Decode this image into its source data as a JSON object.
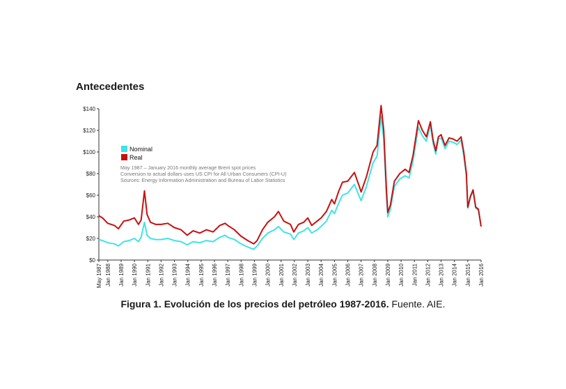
{
  "heading": "Antecedentes",
  "caption": {
    "bold": "Figura 1. Evolución de los precios del petróleo 1987-2016.",
    "rest": " Fuente. AIE."
  },
  "colors": {
    "nominal": "#3fe3e6",
    "real": "#c80f0f",
    "axis": "#333333"
  },
  "chart_data": {
    "type": "line",
    "legend_position": "upper-left",
    "grid": false,
    "ylim": [
      0,
      140
    ],
    "yticks": [
      "$0",
      "$20",
      "$40",
      "$60",
      "$80",
      "$100",
      "$120",
      "$140"
    ],
    "xlim": [
      1987.33,
      2016.0
    ],
    "xticks": [
      "May 1987",
      "Jan 1988",
      "Jan 1989",
      "Jan 1990",
      "Jan 1991",
      "Jan 1992",
      "Jan 1993",
      "Jan 1994",
      "Jan 1995",
      "Jan 1996",
      "Jan 1997",
      "Jan 1998",
      "Jan 1999",
      "Jan 2000",
      "Jan 2001",
      "Jan 2002",
      "Jan 2003",
      "Jan 2004",
      "Jan 2005",
      "Jan 2006",
      "Jan 2007",
      "Jan 2008",
      "Jan 2009",
      "Jan 2010",
      "Jan 2011",
      "Jan 2012",
      "Jan 2013",
      "Jan 2014",
      "Jan 2015",
      "Jan 2016"
    ],
    "notes": [
      "May 1987 – January 2016 monthly average Brent spot prices",
      "Conversion to actual dollars uses US CPI for All Urban Consumers (CPI-U)",
      "Sources: Energy Information Administration and Bureau of Labor Statistics"
    ],
    "series": [
      {
        "name": "Nominal",
        "x": [
          1987.33,
          1987.6,
          1988.0,
          1988.5,
          1988.8,
          1989.2,
          1989.6,
          1990.0,
          1990.3,
          1990.5,
          1990.75,
          1990.95,
          1991.2,
          1991.6,
          1992.0,
          1992.5,
          1993.0,
          1993.5,
          1993.95,
          1994.4,
          1994.9,
          1995.4,
          1995.9,
          1996.4,
          1996.8,
          1997.0,
          1997.5,
          1998.0,
          1998.5,
          1998.95,
          1999.2,
          1999.6,
          2000.0,
          2000.5,
          2000.8,
          2001.2,
          2001.7,
          2001.95,
          2002.3,
          2002.7,
          2003.0,
          2003.3,
          2003.7,
          2004.0,
          2004.4,
          2004.8,
          2005.0,
          2005.3,
          2005.6,
          2006.0,
          2006.5,
          2006.9,
          2007.0,
          2007.4,
          2007.9,
          2008.2,
          2008.5,
          2008.7,
          2008.9,
          2009.0,
          2009.2,
          2009.5,
          2009.9,
          2010.3,
          2010.6,
          2010.9,
          2011.3,
          2011.6,
          2011.9,
          2012.2,
          2012.4,
          2012.6,
          2012.8,
          2013.0,
          2013.3,
          2013.6,
          2013.9,
          2014.2,
          2014.5,
          2014.7,
          2014.9,
          2015.0,
          2015.2,
          2015.4,
          2015.6,
          2015.8,
          2016.0
        ],
        "values": [
          19,
          18,
          16,
          15,
          13,
          17,
          18,
          20,
          17,
          21,
          35,
          23,
          20,
          19,
          19,
          20,
          18,
          17,
          14,
          17,
          16,
          18,
          17,
          21,
          23,
          21,
          19,
          15,
          12,
          10,
          13,
          20,
          25,
          28,
          31,
          26,
          24,
          19,
          25,
          27,
          30,
          25,
          28,
          31,
          36,
          46,
          43,
          52,
          60,
          62,
          70,
          58,
          55,
          68,
          90,
          96,
          133,
          112,
          60,
          40,
          47,
          68,
          75,
          78,
          76,
          92,
          123,
          115,
          110,
          125,
          108,
          98,
          112,
          113,
          103,
          110,
          109,
          107,
          111,
          97,
          78,
          48,
          58,
          64,
          48,
          46,
          31
        ]
      },
      {
        "name": "Real",
        "x": [
          1987.33,
          1987.6,
          1988.0,
          1988.5,
          1988.8,
          1989.2,
          1989.6,
          1990.0,
          1990.3,
          1990.5,
          1990.75,
          1990.95,
          1991.2,
          1991.6,
          1992.0,
          1992.5,
          1993.0,
          1993.5,
          1993.95,
          1994.4,
          1994.9,
          1995.4,
          1995.9,
          1996.4,
          1996.8,
          1997.0,
          1997.5,
          1998.0,
          1998.5,
          1998.95,
          1999.2,
          1999.6,
          2000.0,
          2000.5,
          2000.8,
          2001.2,
          2001.7,
          2001.95,
          2002.3,
          2002.7,
          2003.0,
          2003.3,
          2003.7,
          2004.0,
          2004.4,
          2004.8,
          2005.0,
          2005.3,
          2005.6,
          2006.0,
          2006.5,
          2006.9,
          2007.0,
          2007.4,
          2007.9,
          2008.2,
          2008.5,
          2008.7,
          2008.9,
          2009.0,
          2009.2,
          2009.5,
          2009.9,
          2010.3,
          2010.6,
          2010.9,
          2011.3,
          2011.6,
          2011.9,
          2012.2,
          2012.4,
          2012.6,
          2012.8,
          2013.0,
          2013.3,
          2013.6,
          2013.9,
          2014.2,
          2014.5,
          2014.7,
          2014.9,
          2015.0,
          2015.2,
          2015.4,
          2015.6,
          2015.8,
          2016.0
        ],
        "values": [
          41,
          39,
          34,
          32,
          29,
          36,
          37,
          39,
          33,
          37,
          64,
          42,
          35,
          33,
          33,
          34,
          30,
          28,
          23,
          27,
          25,
          28,
          26,
          32,
          34,
          32,
          28,
          22,
          18,
          15,
          18,
          28,
          35,
          40,
          45,
          36,
          33,
          26,
          33,
          35,
          39,
          32,
          36,
          39,
          45,
          56,
          52,
          63,
          72,
          73,
          81,
          67,
          63,
          77,
          100,
          106,
          143,
          120,
          66,
          44,
          51,
          73,
          80,
          84,
          81,
          97,
          129,
          120,
          114,
          128,
          111,
          101,
          114,
          116,
          106,
          113,
          112,
          110,
          114,
          100,
          80,
          49,
          59,
          65,
          49,
          47,
          31
        ]
      }
    ]
  }
}
